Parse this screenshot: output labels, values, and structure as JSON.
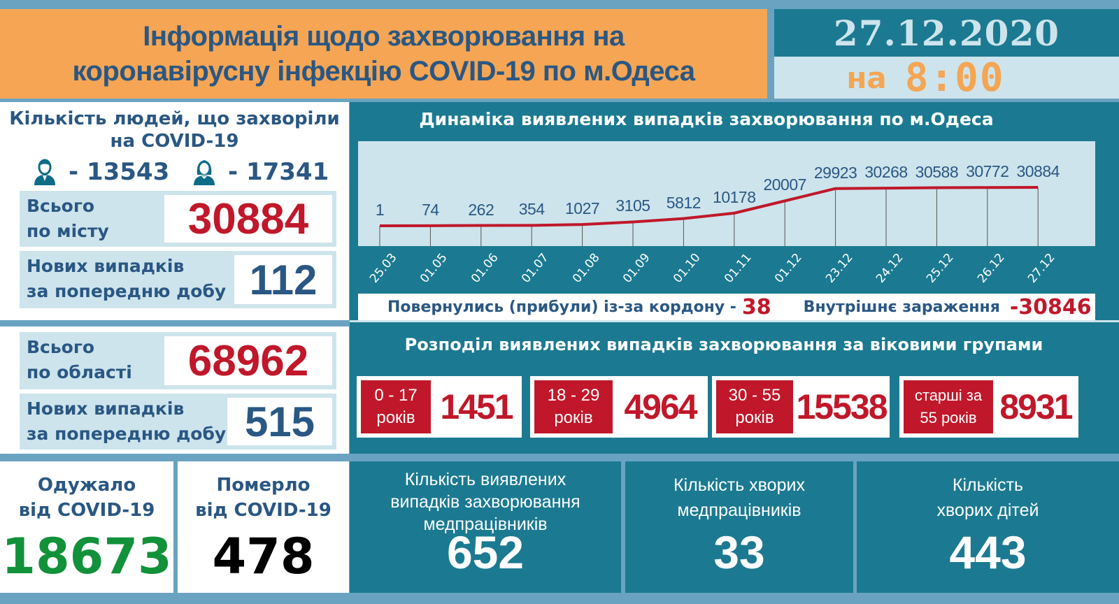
{
  "header": {
    "title_line1": "Інформація щодо захворювання на",
    "title_line2": "коронавірусну інфекцію COVID-19 по м.Одеса",
    "date": "27.12.2020",
    "time_prefix": "на",
    "time": "8:00"
  },
  "sick_people": {
    "heading_line1": "Кількість людей, що захворіли",
    "heading_line2": "на COVID-19",
    "male_icon": "man-icon",
    "male_count": "- 13543",
    "female_icon": "woman-icon",
    "female_count": "- 17341",
    "city_total_label_line1": "Всього",
    "city_total_label_line2": "по місту",
    "city_total_value": "30884",
    "city_new_label_line1": "Нових випадків",
    "city_new_label_line2": "за попередню добу",
    "city_new_value": "112"
  },
  "region": {
    "total_label_line1": "Всього",
    "total_label_line2": "по області",
    "total_value": "68962",
    "new_label_line1": "Нових випадків",
    "new_label_line2": "за попередню добу",
    "new_value": "515"
  },
  "recovered": {
    "label_line1": "Одужало",
    "label_line2": "від COVID-19",
    "value": "18673"
  },
  "deaths": {
    "label_line1": "Померло",
    "label_line2": "від COVID-19",
    "value": "478"
  },
  "imported": {
    "label": "Повернулись (прибули) із-за кордону -",
    "value": "38"
  },
  "internal": {
    "label": "Внутрішнє зараження",
    "value": "-30846"
  },
  "age_groups": {
    "title": "Розподіл виявлених випадків захворювання за віковими групами",
    "groups": [
      {
        "line1": "0 - 17",
        "line2": "років",
        "value": "1451"
      },
      {
        "line1": "18 - 29",
        "line2": "років",
        "value": "4964"
      },
      {
        "line1": "30 - 55",
        "line2": "років",
        "value": "15538"
      },
      {
        "line1": "старші за",
        "line2": "55 років",
        "value": "8931"
      }
    ]
  },
  "medical": {
    "detected_label_line1": "Кількість виявлених",
    "detected_label_line2": "випадків захворювання",
    "detected_label_line3": "медпрацівників",
    "detected_value": "652",
    "sick_label_line1": "Кількість хворих",
    "sick_label_line2": "медпрацівників",
    "sick_value": "33"
  },
  "children": {
    "label_line1": "Кількість",
    "label_line2": "хворих дітей",
    "value": "443"
  },
  "colors": {
    "teal": "#1b7a91",
    "light_blue": "#cde4ec",
    "orange": "#f5a553",
    "red": "#c0182a",
    "navy": "#2a5783",
    "green": "#11913a",
    "border_blue": "#6aa3c2"
  },
  "chart_data": {
    "type": "line",
    "title": "Динаміка виявлених випадків захворювання по м.Одеса",
    "categories": [
      "25.03",
      "01.05",
      "01.06",
      "01.07",
      "01.08",
      "01.09",
      "01.10",
      "01.11",
      "01.12",
      "23.12",
      "24.12",
      "25.12",
      "26.12",
      "27.12"
    ],
    "values": [
      1,
      74,
      262,
      354,
      1027,
      3105,
      5812,
      10178,
      20007,
      29923,
      30268,
      30588,
      30772,
      30884
    ],
    "labels": [
      "1",
      "74",
      "262",
      "354",
      "1027",
      "3105",
      "5812",
      "10178",
      "20007",
      "29923",
      "30268",
      "30588",
      "30772",
      "30884"
    ],
    "xlabel": "",
    "ylabel": "",
    "grid": false,
    "legend": "none",
    "line_color": "#c0182a"
  }
}
